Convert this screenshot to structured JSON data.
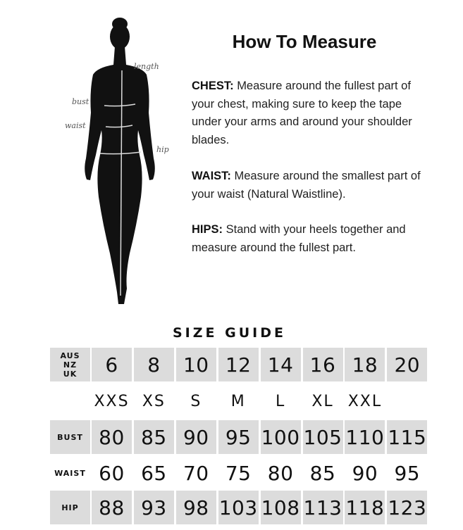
{
  "figure": {
    "labels": [
      "length",
      "bust",
      "waist",
      "hip"
    ]
  },
  "how_to": {
    "title": "How To Measure",
    "sections": [
      {
        "label": "CHEST:",
        "text": "Measure around the fullest part of your chest, making sure to keep the tape under your arms and around your shoulder blades."
      },
      {
        "label": "WAIST:",
        "text": "Measure around the smallest part of your waist (Natural Waistline)."
      },
      {
        "label": "HIPS:",
        "text": "Stand with your heels together and measure around the fullest part."
      }
    ]
  },
  "size_guide": {
    "title": "SIZE GUIDE",
    "rows": [
      {
        "label": "AUS\nNZ\nUK",
        "values": [
          "6",
          "8",
          "10",
          "12",
          "14",
          "16",
          "18",
          "20"
        ],
        "shaded": true
      },
      {
        "label": "",
        "values": [
          "XXS",
          "XS",
          "S",
          "M",
          "L",
          "XL",
          "XXL",
          ""
        ],
        "shaded": false
      },
      {
        "label": "BUST",
        "values": [
          "80",
          "85",
          "90",
          "95",
          "100",
          "105",
          "110",
          "115"
        ],
        "shaded": true
      },
      {
        "label": "WAIST",
        "values": [
          "60",
          "65",
          "70",
          "75",
          "80",
          "85",
          "90",
          "95"
        ],
        "shaded": false
      },
      {
        "label": "HIP",
        "values": [
          "88",
          "93",
          "98",
          "103",
          "108",
          "113",
          "118",
          "123"
        ],
        "shaded": true
      }
    ],
    "shade_color": "#dcdcdc"
  }
}
